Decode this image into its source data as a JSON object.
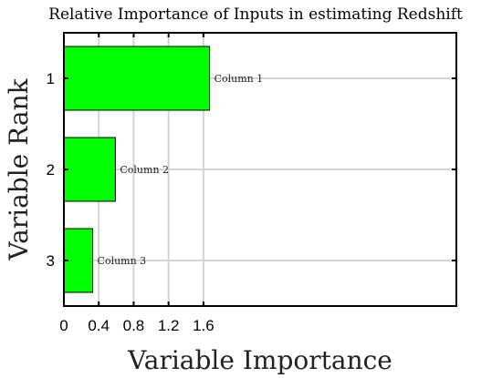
{
  "chart_data": {
    "type": "bar",
    "orientation": "horizontal",
    "title": "Relative Importance of Inputs in estimating Redshift",
    "xlabel": "Variable Importance",
    "ylabel": "Variable Rank",
    "categories": [
      "1",
      "2",
      "3"
    ],
    "values": [
      1.67,
      0.59,
      0.33
    ],
    "bar_labels": [
      "Column 1",
      "Column 2",
      "Column 3"
    ],
    "xlim": [
      0,
      4.5
    ],
    "xticks": [
      0,
      0.4,
      0.8,
      1.2,
      1.6
    ],
    "xtick_labels": [
      "0",
      "0.4",
      "0.8",
      "1.2",
      "1.6"
    ],
    "bar_color": "#00ff00",
    "grid": true
  }
}
